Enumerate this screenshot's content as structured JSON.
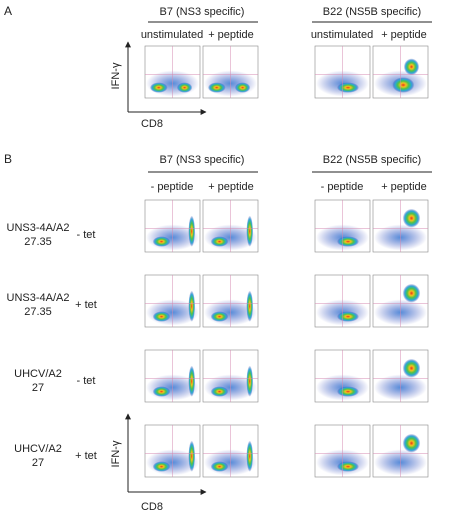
{
  "panel_a": {
    "label": "A",
    "groups": [
      {
        "title": "B7 (NS3 specific)",
        "conditions": [
          "unstimulated",
          "+ peptide"
        ]
      },
      {
        "title": "B22 (NS5B specific)",
        "conditions": [
          "unstimulated",
          "+ peptide"
        ]
      }
    ],
    "y_axis": "IFN-γ",
    "x_axis": "CD8"
  },
  "panel_b": {
    "label": "B",
    "groups": [
      {
        "title": "B7 (NS3 specific)",
        "conditions": [
          "- peptide",
          "+ peptide"
        ]
      },
      {
        "title": "B22 (NS5B specific)",
        "conditions": [
          "- peptide",
          "+ peptide"
        ]
      }
    ],
    "rows": [
      {
        "cell_line": [
          "UNS3-4A/A2",
          "27.35"
        ],
        "treatment": "- tet"
      },
      {
        "cell_line": [
          "UNS3-4A/A2",
          "27.35"
        ],
        "treatment": "+ tet"
      },
      {
        "cell_line": [
          "UHCV/A2",
          "27"
        ],
        "treatment": "- tet"
      },
      {
        "cell_line": [
          "UHCV/A2",
          "27"
        ],
        "treatment": "+ tet"
      }
    ],
    "y_axis": "IFN-γ",
    "x_axis": "CD8"
  }
}
